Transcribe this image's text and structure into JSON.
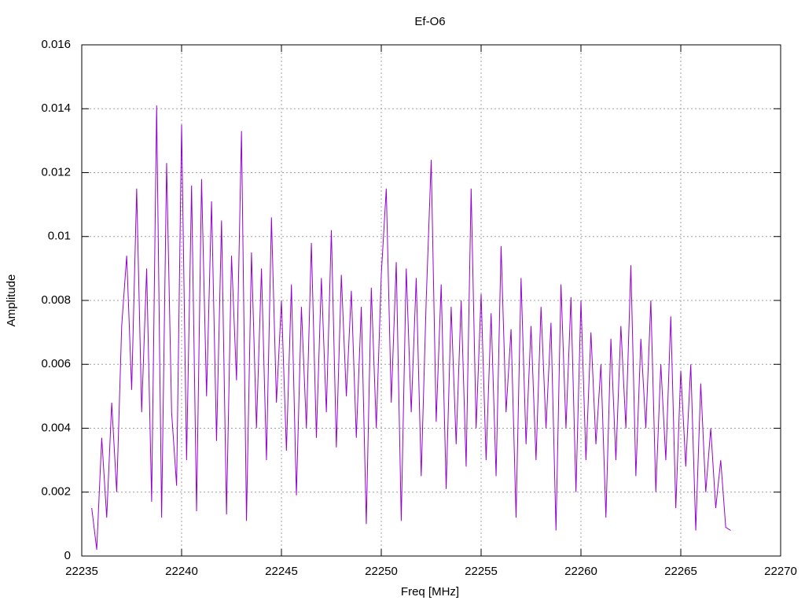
{
  "chart_data": {
    "type": "line",
    "title": "Ef-O6",
    "xlabel": "Freq [MHz]",
    "ylabel": "Amplitude",
    "xlim": [
      22235,
      22270
    ],
    "xticks": [
      22235,
      22240,
      22245,
      22250,
      22255,
      22260,
      22265,
      22270
    ],
    "ylim": [
      0,
      0.016
    ],
    "yticks": [
      0,
      0.002,
      0.004,
      0.006,
      0.008,
      0.01,
      0.012,
      0.014,
      0.016
    ],
    "grid": true,
    "series": [
      {
        "color": "#9400d3",
        "x": [
          22235.5,
          22235.75,
          22236,
          22236.25,
          22236.5,
          22236.75,
          22237,
          22237.25,
          22237.5,
          22237.75,
          22238,
          22238.25,
          22238.5,
          22238.75,
          22239,
          22239.25,
          22239.5,
          22239.75,
          22240,
          22240.25,
          22240.5,
          22240.75,
          22241,
          22241.25,
          22241.5,
          22241.75,
          22242,
          22242.25,
          22242.5,
          22242.75,
          22243,
          22243.25,
          22243.5,
          22243.75,
          22244,
          22244.25,
          22244.5,
          22244.75,
          22245,
          22245.25,
          22245.5,
          22245.75,
          22246,
          22246.25,
          22246.5,
          22246.75,
          22247,
          22247.25,
          22247.5,
          22247.75,
          22248,
          22248.25,
          22248.5,
          22248.75,
          22249,
          22249.25,
          22249.5,
          22249.75,
          22250,
          22250.25,
          22250.5,
          22250.75,
          22251,
          22251.25,
          22251.5,
          22251.75,
          22252,
          22252.25,
          22252.5,
          22252.75,
          22253,
          22253.25,
          22253.5,
          22253.75,
          22254,
          22254.25,
          22254.5,
          22254.75,
          22255,
          22255.25,
          22255.5,
          22255.75,
          22256,
          22256.25,
          22256.5,
          22256.75,
          22257,
          22257.25,
          22257.5,
          22257.75,
          22258,
          22258.25,
          22258.5,
          22258.75,
          22259,
          22259.25,
          22259.5,
          22259.75,
          22260,
          22260.25,
          22260.5,
          22260.75,
          22261,
          22261.25,
          22261.5,
          22261.75,
          22262,
          22262.25,
          22262.5,
          22262.75,
          22263,
          22263.25,
          22263.5,
          22263.75,
          22264,
          22264.25,
          22264.5,
          22264.75,
          22265,
          22265.25,
          22265.5,
          22265.75,
          22266,
          22266.25,
          22266.5,
          22266.75,
          22267,
          22267.25,
          22267.5
        ],
        "values": [
          0.0015,
          0.0002,
          0.0037,
          0.0012,
          0.0048,
          0.002,
          0.0072,
          0.0094,
          0.0052,
          0.0115,
          0.0045,
          0.009,
          0.0017,
          0.0141,
          0.0012,
          0.0123,
          0.0045,
          0.0022,
          0.0135,
          0.003,
          0.0116,
          0.0014,
          0.0118,
          0.005,
          0.0111,
          0.0036,
          0.0105,
          0.0013,
          0.0094,
          0.0055,
          0.0133,
          0.0011,
          0.0095,
          0.004,
          0.009,
          0.003,
          0.0106,
          0.0048,
          0.008,
          0.0033,
          0.0085,
          0.0019,
          0.0078,
          0.004,
          0.0098,
          0.0037,
          0.0087,
          0.0045,
          0.0102,
          0.0034,
          0.0088,
          0.005,
          0.0083,
          0.0037,
          0.0078,
          0.001,
          0.0084,
          0.004,
          0.0088,
          0.0115,
          0.0048,
          0.0092,
          0.0011,
          0.009,
          0.0045,
          0.0087,
          0.0025,
          0.008,
          0.0124,
          0.0042,
          0.0085,
          0.0021,
          0.0078,
          0.0035,
          0.008,
          0.0028,
          0.0115,
          0.004,
          0.0082,
          0.003,
          0.0076,
          0.0025,
          0.0097,
          0.0045,
          0.0071,
          0.0012,
          0.0087,
          0.0035,
          0.0072,
          0.003,
          0.0078,
          0.004,
          0.0073,
          0.0008,
          0.0085,
          0.004,
          0.0081,
          0.002,
          0.008,
          0.003,
          0.007,
          0.0035,
          0.006,
          0.0012,
          0.0068,
          0.003,
          0.0072,
          0.004,
          0.0091,
          0.0025,
          0.0068,
          0.004,
          0.008,
          0.002,
          0.006,
          0.003,
          0.0075,
          0.0015,
          0.0058,
          0.0028,
          0.006,
          0.0008,
          0.0054,
          0.002,
          0.004,
          0.0015,
          0.003,
          0.0009,
          0.0008
        ]
      }
    ]
  }
}
